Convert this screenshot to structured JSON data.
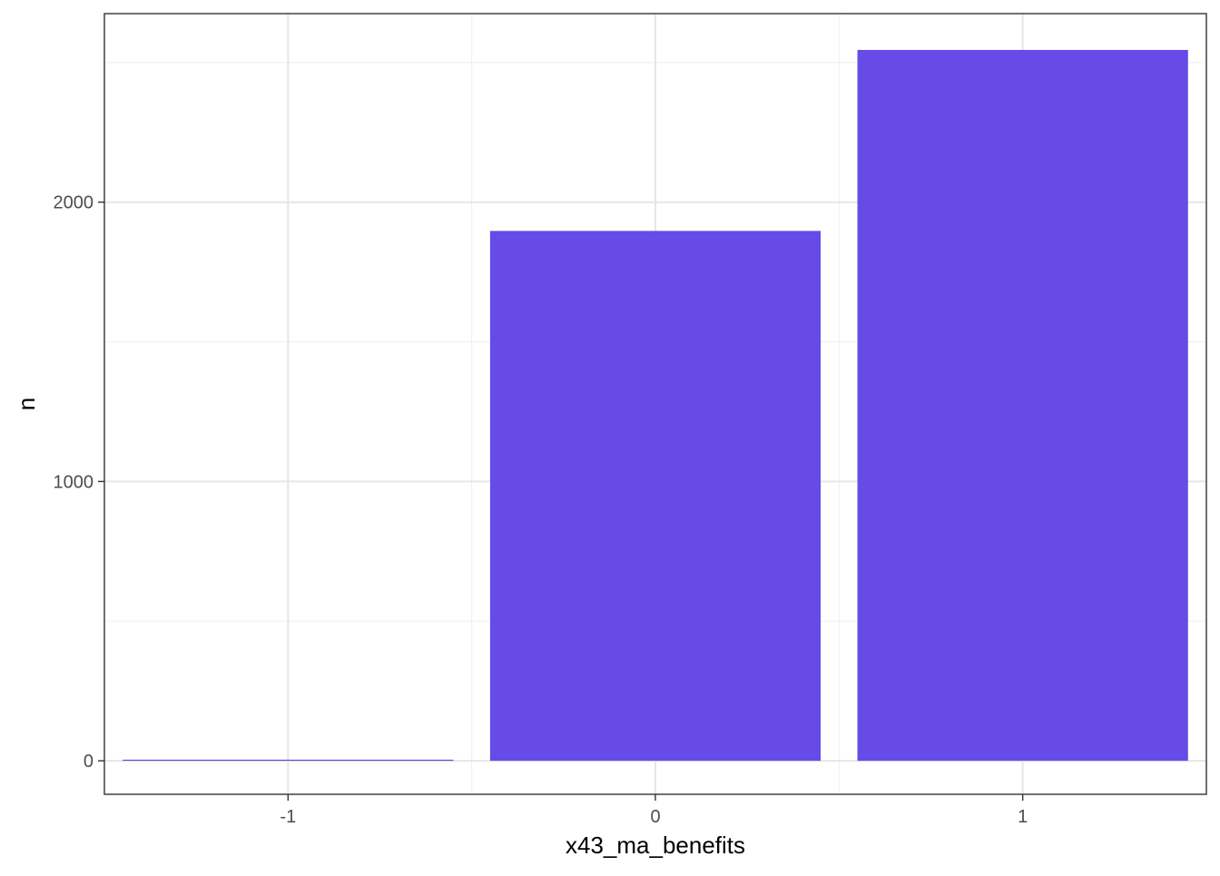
{
  "chart_data": {
    "type": "bar",
    "categories": [
      "-1",
      "0",
      "1"
    ],
    "x": [
      -1,
      0,
      1
    ],
    "values": [
      4,
      1897,
      2545
    ],
    "xlabel": "x43_ma_benefits",
    "ylabel": "n",
    "yticks": [
      0,
      1000,
      2000
    ],
    "ytick_labels": [
      "0",
      "1000",
      "2000"
    ],
    "xtick_labels": [
      "-1",
      "0",
      "1"
    ],
    "ylim": [
      -120,
      2675
    ],
    "xlim": [
      -1.5,
      1.5
    ],
    "grid": true,
    "bar_color": "#664BE7",
    "theme": "bw"
  }
}
